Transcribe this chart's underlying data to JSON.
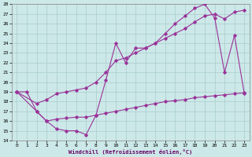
{
  "xlabel": "Windchill (Refroidissement éolien,°C)",
  "bg_color": "#cce8e8",
  "grid_color": "#aacccc",
  "line_color": "#993399",
  "xlim": [
    -0.5,
    23.5
  ],
  "ylim": [
    14,
    28
  ],
  "xticks": [
    0,
    1,
    2,
    3,
    4,
    5,
    6,
    7,
    8,
    9,
    10,
    11,
    12,
    13,
    14,
    15,
    16,
    17,
    18,
    19,
    20,
    21,
    22,
    23
  ],
  "yticks": [
    14,
    15,
    16,
    17,
    18,
    19,
    20,
    21,
    22,
    23,
    24,
    25,
    26,
    27,
    28
  ],
  "line1_x": [
    0,
    1,
    2,
    3,
    4,
    5,
    6,
    7,
    8,
    9,
    10,
    11,
    12,
    13,
    14,
    15,
    16,
    17,
    18,
    19,
    20,
    21,
    22,
    23
  ],
  "line1_y": [
    19.0,
    19.0,
    17.0,
    16.0,
    15.2,
    15.0,
    15.0,
    14.6,
    16.6,
    20.2,
    24.0,
    22.0,
    23.5,
    23.5,
    24.0,
    25.0,
    26.0,
    26.8,
    27.6,
    28.0,
    26.6,
    21.0,
    24.8,
    18.8
  ],
  "line2_x": [
    0,
    2,
    3,
    4,
    5,
    6,
    7,
    8,
    9,
    10,
    11,
    12,
    13,
    14,
    15,
    16,
    17,
    18,
    19,
    20,
    21,
    22,
    23
  ],
  "line2_y": [
    19.0,
    17.8,
    18.2,
    18.8,
    19.0,
    19.2,
    19.4,
    20.0,
    21.0,
    22.2,
    22.5,
    23.0,
    23.5,
    24.0,
    24.5,
    25.0,
    25.5,
    26.2,
    26.8,
    27.0,
    26.5,
    27.2,
    27.4
  ],
  "line3_x": [
    0,
    2,
    3,
    4,
    5,
    6,
    7,
    8,
    9,
    10,
    11,
    12,
    13,
    14,
    15,
    16,
    17,
    18,
    19,
    20,
    21,
    22,
    23
  ],
  "line3_y": [
    19.0,
    17.0,
    16.0,
    16.2,
    16.3,
    16.4,
    16.4,
    16.6,
    16.8,
    17.0,
    17.2,
    17.4,
    17.6,
    17.8,
    18.0,
    18.1,
    18.2,
    18.4,
    18.5,
    18.6,
    18.7,
    18.8,
    18.9
  ]
}
